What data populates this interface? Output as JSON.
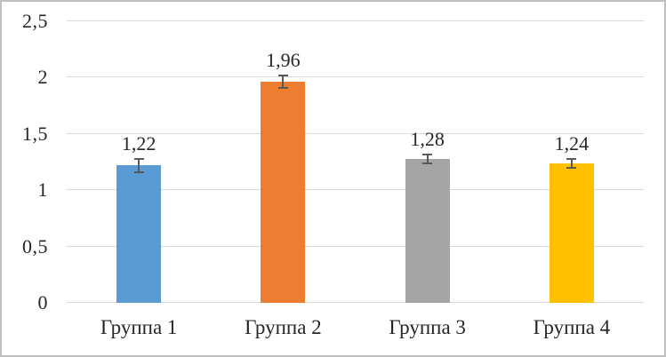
{
  "figure": {
    "background": "#ffffff",
    "border_color": "#bfbfbf"
  },
  "chart_data": {
    "type": "bar",
    "title": "",
    "xlabel": "",
    "ylabel": "",
    "categories": [
      "Группа 1",
      "Группа 2",
      "Группа 3",
      "Группа 4"
    ],
    "values": [
      1.22,
      1.96,
      1.28,
      1.24
    ],
    "data_labels": [
      "1,22",
      "1,96",
      "1,28",
      "1,24"
    ],
    "errors": [
      0.06,
      0.055,
      0.04,
      0.04
    ],
    "bar_colors": [
      "#5b9bd5",
      "#ed7d31",
      "#a5a5a5",
      "#ffc000"
    ],
    "ylim": [
      0,
      2.5
    ],
    "y_ticks": [
      {
        "value": 0,
        "label": "0"
      },
      {
        "value": 0.5,
        "label": "0,5"
      },
      {
        "value": 1,
        "label": "1"
      },
      {
        "value": 1.5,
        "label": "1,5"
      },
      {
        "value": 2,
        "label": "2"
      },
      {
        "value": 2.5,
        "label": "2,5"
      }
    ],
    "grid": true,
    "gridline_color": "#d9d9d9",
    "error_bar_color": "#595959",
    "text_color": "#262626",
    "legend_position": "none",
    "decimal_separator": ","
  }
}
